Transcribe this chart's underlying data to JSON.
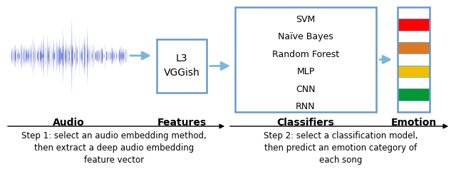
{
  "bg_color": "#ffffff",
  "waveform_color": "#5566cc",
  "box_border_color": "#6699cc",
  "arrow_color": "#7ab8d8",
  "box_feature_text": [
    "L3",
    "VGGish"
  ],
  "box_classifier_text": [
    "SVM",
    "Naïve Bayes",
    "Random Forest",
    "MLP",
    "CNN",
    "RNN"
  ],
  "emotion_colors": [
    "#ffffff",
    "#ff0000",
    "#ffffff",
    "#e07820",
    "#ffffff",
    "#f0c000",
    "#ffffff",
    "#009933",
    "#ffffff"
  ],
  "label_audio": "Audio",
  "label_features": "Features",
  "label_classifiers": "Classifiers",
  "label_emotion": "Emotion",
  "step1": "Step 1: select an audio embedding method,\nthen extract a deep audio embedding\nfeature vector",
  "step2": "Step 2: select a classification model,\nthen predict an emotion category of\neach song",
  "label_fontsize": 10,
  "step_fontsize": 8.5,
  "classifier_fontsize": 9,
  "feature_fontsize": 10
}
